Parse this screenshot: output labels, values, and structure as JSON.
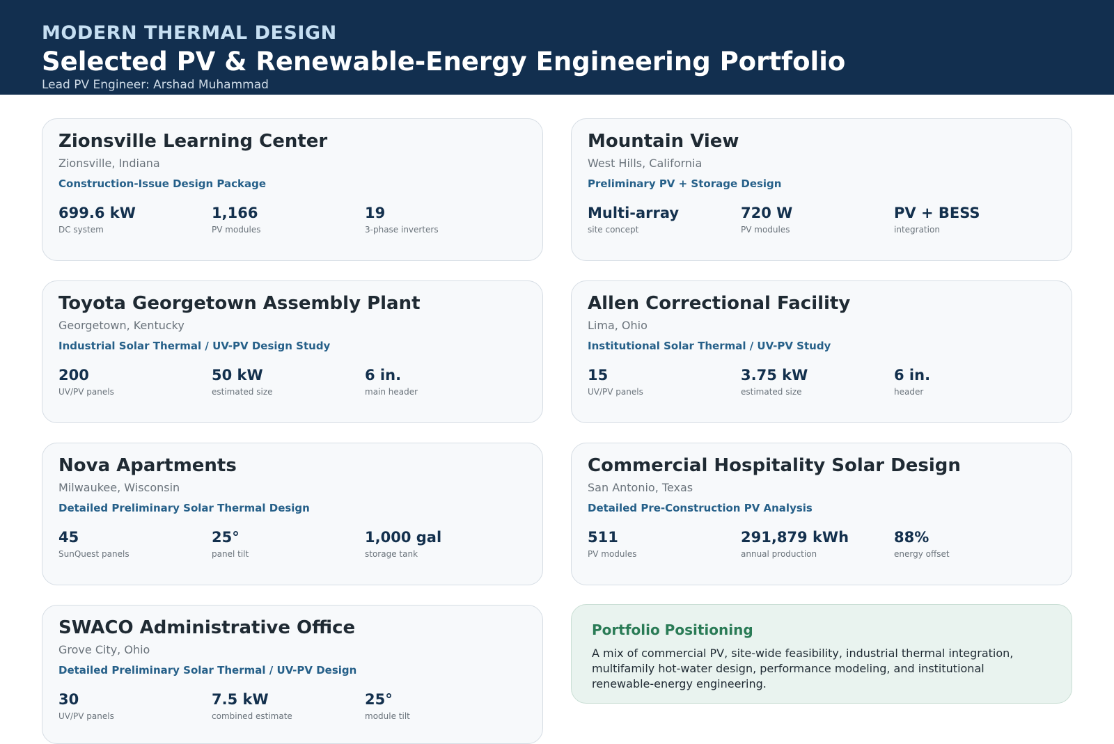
{
  "header": {
    "firm": "MODERN THERMAL DESIGN",
    "title": "Selected PV & Renewable-Energy Engineering Portfolio",
    "subtitle": "Lead PV Engineer: Arshad Muhammad"
  },
  "projects": [
    {
      "name": "Zionsville Learning Center",
      "location": "Zionsville, Indiana",
      "type": "Construction-Issue Design Package",
      "stats": [
        {
          "value": "699.6 kW",
          "label": "DC system"
        },
        {
          "value": "1,166",
          "label": "PV modules"
        },
        {
          "value": "19",
          "label": "3-phase inverters"
        }
      ]
    },
    {
      "name": "Mountain View",
      "location": "West Hills, California",
      "type": "Preliminary PV + Storage Design",
      "stats": [
        {
          "value": "Multi-array",
          "label": "site concept"
        },
        {
          "value": "720 W",
          "label": "PV modules"
        },
        {
          "value": "PV + BESS",
          "label": "integration"
        }
      ]
    },
    {
      "name": "Toyota Georgetown Assembly Plant",
      "location": "Georgetown, Kentucky",
      "type": "Industrial Solar Thermal / UV-PV Design Study",
      "stats": [
        {
          "value": "200",
          "label": "UV/PV panels"
        },
        {
          "value": "50 kW",
          "label": "estimated size"
        },
        {
          "value": "6 in.",
          "label": "main header"
        }
      ]
    },
    {
      "name": "Allen Correctional Facility",
      "location": "Lima, Ohio",
      "type": "Institutional Solar Thermal / UV-PV Study",
      "stats": [
        {
          "value": "15",
          "label": "UV/PV panels"
        },
        {
          "value": "3.75 kW",
          "label": "estimated size"
        },
        {
          "value": "6 in.",
          "label": "header"
        }
      ]
    },
    {
      "name": "Nova Apartments",
      "location": "Milwaukee, Wisconsin",
      "type": "Detailed Preliminary Solar Thermal Design",
      "stats": [
        {
          "value": "45",
          "label": "SunQuest panels"
        },
        {
          "value": "25°",
          "label": "panel tilt"
        },
        {
          "value": "1,000 gal",
          "label": "storage tank"
        }
      ]
    },
    {
      "name": "Commercial Hospitality Solar Design",
      "location": "San Antonio, Texas",
      "type": "Detailed Pre-Construction PV Analysis",
      "stats": [
        {
          "value": "511",
          "label": "PV modules"
        },
        {
          "value": "291,879 kWh",
          "label": "annual production"
        },
        {
          "value": "88%",
          "label": "energy offset"
        }
      ]
    },
    {
      "name": "SWACO Administrative Office",
      "location": "Grove City, Ohio",
      "type": "Detailed Preliminary Solar Thermal / UV-PV Design",
      "stats": [
        {
          "value": "30",
          "label": "UV/PV panels"
        },
        {
          "value": "7.5 kW",
          "label": "combined estimate"
        },
        {
          "value": "25°",
          "label": "module tilt"
        }
      ]
    }
  ],
  "positioning": {
    "title": "Portfolio Positioning",
    "text": "A mix of commercial PV, site-wide feasibility, industrial thermal integration, multifamily hot-water design, performance modeling, and institutional renewable-energy engineering."
  }
}
